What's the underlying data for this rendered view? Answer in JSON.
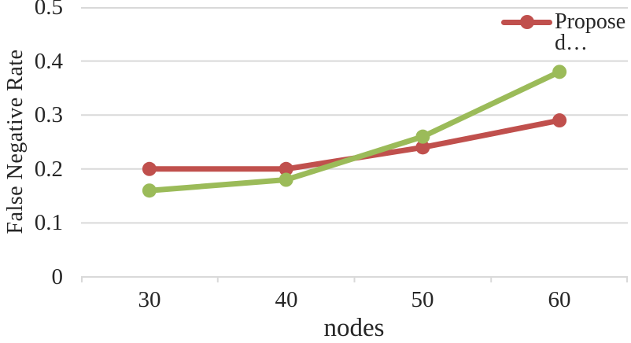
{
  "chart_data": {
    "type": "line",
    "title": "",
    "xlabel": "nodes",
    "ylabel": "False Negative Rate",
    "categories": [
      "30",
      "40",
      "50",
      "60"
    ],
    "series": [
      {
        "name": "Proposed…",
        "color": "#C0504D",
        "values": [
          0.2,
          0.2,
          0.24,
          0.29
        ]
      },
      {
        "name": "",
        "color": "#9BBB59",
        "values": [
          0.16,
          0.18,
          0.26,
          0.38
        ]
      }
    ],
    "ylim": [
      0,
      0.5
    ],
    "y_ticks_display": [
      "0.5",
      "0.4",
      "0.3",
      "0.2",
      "0.1",
      "0"
    ],
    "grid": "horizontal",
    "gridline_color": "#D9D9D9",
    "axis_line_color": "#D9D9D9",
    "text_color": "#262626",
    "legend_position": "top-right"
  },
  "legend": {
    "entries": [
      {
        "label": "Proposed…",
        "display_lines": [
          "Propose",
          "d…"
        ],
        "color": "#C0504D",
        "marker": "line-with-circle"
      }
    ]
  }
}
